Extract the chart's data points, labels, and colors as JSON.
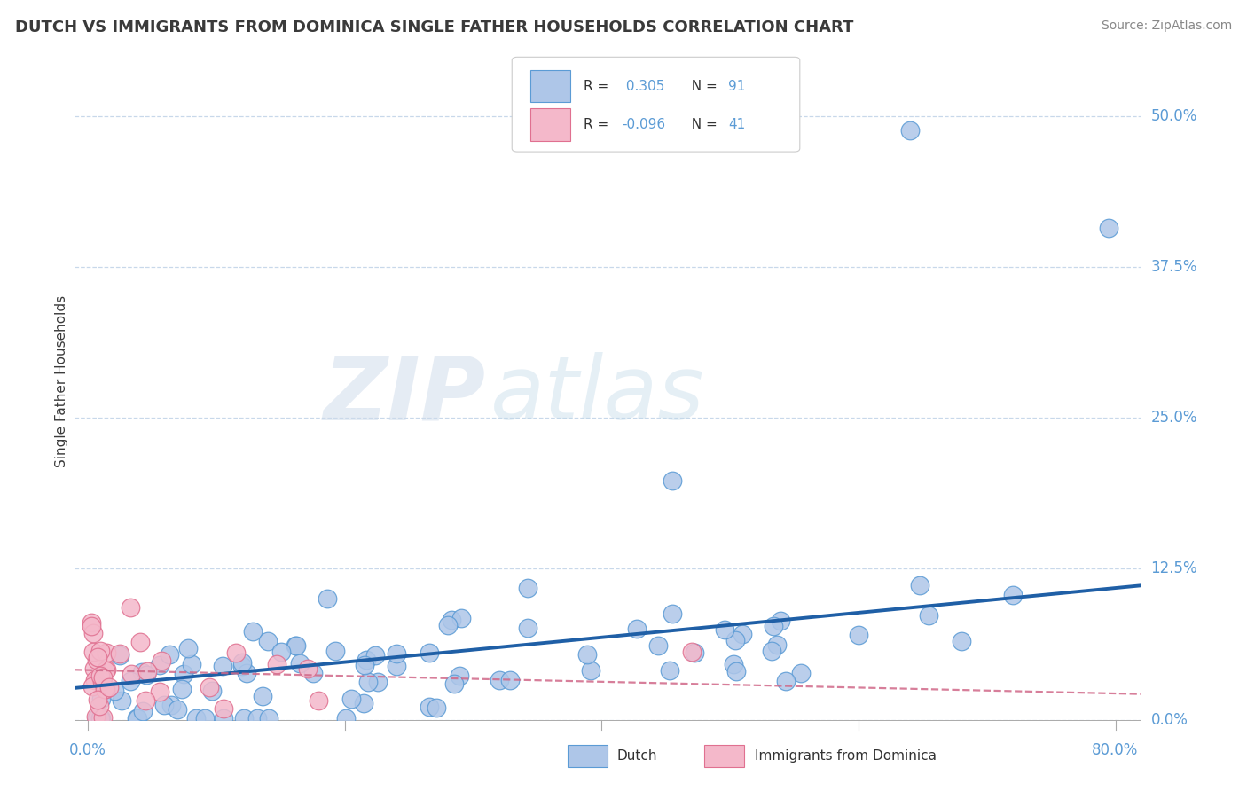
{
  "title": "DUTCH VS IMMIGRANTS FROM DOMINICA SINGLE FATHER HOUSEHOLDS CORRELATION CHART",
  "source": "Source: ZipAtlas.com",
  "ylabel": "Single Father Households",
  "ytick_labels": [
    "0.0%",
    "12.5%",
    "25.0%",
    "37.5%",
    "50.0%"
  ],
  "ytick_values": [
    0.0,
    0.125,
    0.25,
    0.375,
    0.5
  ],
  "xlim": [
    0.0,
    0.8
  ],
  "ylim": [
    0.0,
    0.55
  ],
  "legend_dutch": "Dutch",
  "legend_dominica": "Immigrants from Dominica",
  "dutch_R": 0.305,
  "dutch_N": 91,
  "dominica_R": -0.096,
  "dominica_N": 41,
  "dutch_color": "#aec6e8",
  "dutch_edge_color": "#5b9bd5",
  "dominica_color": "#f4b8ca",
  "dominica_edge_color": "#e07090",
  "trend_dutch_color": "#1f5fa6",
  "trend_dominica_color": "#d06888",
  "background_color": "#ffffff",
  "grid_color": "#c8d8ea",
  "watermark_color": "#dce8f0",
  "title_color": "#3a3a3a",
  "title_fontsize": 13,
  "source_fontsize": 10,
  "axis_label_color": "#5b9bd5"
}
